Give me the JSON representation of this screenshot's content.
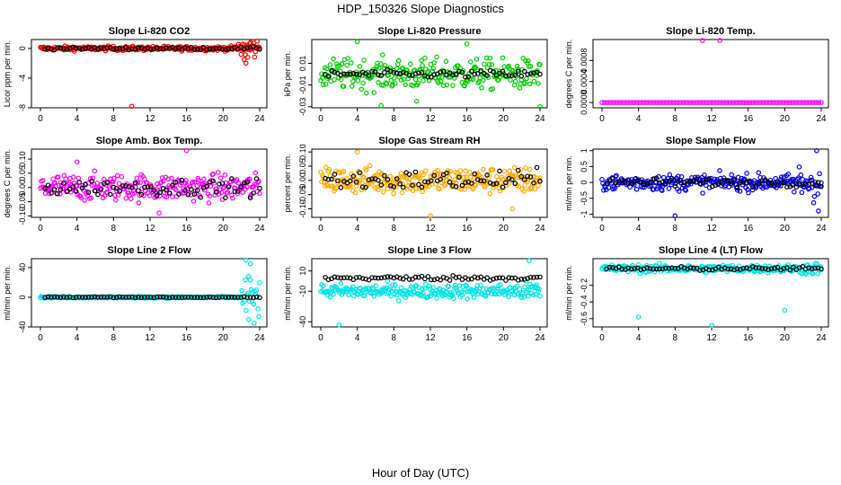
{
  "figure": {
    "title": "HDP_150326  Slope Diagnostics",
    "xlabel": "Hour of Day (UTC)"
  },
  "chart_data": [
    {
      "type": "scatter",
      "title": "Slope Li-820 CO2",
      "ylabel": "Licor ppm per min.",
      "color": "#ff0000",
      "xlim": [
        0,
        24
      ],
      "ylim": [
        -8,
        1.2
      ],
      "xticks": [
        "0",
        "4",
        "8",
        "12",
        "16",
        "20",
        "24"
      ],
      "yticks": [
        -8,
        -4,
        0
      ],
      "ytick_labels": [
        "-8",
        "-4",
        "0"
      ],
      "center": 0,
      "spread": 0.25,
      "black_spread": 0.15,
      "outliers": [
        {
          "x": 10,
          "y": -7.8
        },
        {
          "x": 22.3,
          "y": -1.5
        },
        {
          "x": 22.5,
          "y": -2
        },
        {
          "x": 22.7,
          "y": -1.2
        },
        {
          "x": 23,
          "y": 0.8
        }
      ],
      "end_spread": 1.2,
      "end_start": 21.5
    },
    {
      "type": "scatter",
      "title": "Slope Li-820 Pressure",
      "ylabel": "kPa per min.",
      "color": "#00cc00",
      "xlim": [
        0,
        24
      ],
      "ylim": [
        -0.031,
        0.032
      ],
      "xticks": [
        "0",
        "4",
        "8",
        "12",
        "16",
        "20",
        "24"
      ],
      "yticks": [
        -0.03,
        -0.01,
        0.01
      ],
      "ytick_labels": [
        "-0.03",
        "-0.01",
        "0.01"
      ],
      "center": 0,
      "spread": 0.012,
      "black_spread": 0.003,
      "outliers": [
        {
          "x": 4,
          "y": 0.03
        },
        {
          "x": 6.6,
          "y": -0.029
        },
        {
          "x": 10.5,
          "y": -0.025
        },
        {
          "x": 16,
          "y": 0.028
        },
        {
          "x": 24,
          "y": -0.03
        }
      ],
      "end_spread": 0.012,
      "end_start": 21.5
    },
    {
      "type": "scatter",
      "title": "Slope Li-820 Temp.",
      "ylabel": "degrees C per min.",
      "color": "#ff00ff",
      "xlim": [
        0,
        24
      ],
      "ylim": [
        -0.0001,
        0.0012
      ],
      "xticks": [
        "0",
        "4",
        "8",
        "12",
        "16",
        "20",
        "24"
      ],
      "yticks": [
        0,
        0.0004,
        0.0008
      ],
      "ytick_labels": [
        "0.0000",
        "0.0004",
        "0.0008"
      ],
      "center": 0,
      "spread": 0,
      "black_spread": 0,
      "outliers": [
        {
          "x": 11,
          "y": 0.00118
        },
        {
          "x": 12.9,
          "y": 0.00118
        }
      ],
      "end_spread": 0,
      "end_start": 24
    },
    {
      "type": "scatter",
      "title": "Slope Amb. Box Temp.",
      "ylabel": "degrees C per min.",
      "color": "#ff00ff",
      "xlim": [
        0,
        24
      ],
      "ylim": [
        -0.105,
        0.135
      ],
      "xticks": [
        "0",
        "4",
        "8",
        "12",
        "16",
        "20",
        "24"
      ],
      "yticks": [
        -0.1,
        0,
        0.1
      ],
      "ytick_labels": [
        "-0.10",
        "0.00",
        "0.10"
      ],
      "extra_yticks": [
        -0.05,
        0.05
      ],
      "extra_ytick_labels": [
        "-0.05",
        "0.05"
      ],
      "center": 0,
      "spread": 0.04,
      "black_spread": 0.025,
      "outliers": [
        {
          "x": 13,
          "y": -0.09
        },
        {
          "x": 16,
          "y": 0.13
        },
        {
          "x": 4,
          "y": 0.09
        }
      ],
      "end_spread": 0.04,
      "end_start": 21.5
    },
    {
      "type": "scatter",
      "title": "Slope Gas Stream RH",
      "ylabel": "percent per min.",
      "color": "#ffaa00",
      "xlim": [
        0,
        24
      ],
      "ylim": [
        -0.13,
        0.11
      ],
      "xticks": [
        "0",
        "4",
        "8",
        "12",
        "16",
        "20",
        "24"
      ],
      "yticks": [
        -0.1,
        0,
        0.1
      ],
      "ytick_labels": [
        "-0.10",
        "0.00",
        "0.10"
      ],
      "extra_yticks": [
        -0.05,
        0.05
      ],
      "extra_ytick_labels": [
        "-0.05",
        "0.05"
      ],
      "center": 0,
      "spread": 0.04,
      "black_spread": 0.03,
      "outliers": [
        {
          "x": 4,
          "y": 0.1
        },
        {
          "x": 12,
          "y": -0.125
        },
        {
          "x": 21,
          "y": -0.1
        }
      ],
      "end_spread": 0.04,
      "end_start": 21.5
    },
    {
      "type": "scatter",
      "title": "Slope Sample Flow",
      "ylabel": "ml/min per min.",
      "color": "#0000ee",
      "xlim": [
        0,
        24
      ],
      "ylim": [
        -1.1,
        1.05
      ],
      "xticks": [
        "0",
        "4",
        "8",
        "12",
        "16",
        "20",
        "24"
      ],
      "yticks": [
        -1,
        0,
        1
      ],
      "ytick_labels": [
        "-1",
        "0",
        "1"
      ],
      "extra_yticks": [
        -0.5,
        0.5
      ],
      "extra_ytick_labels": [
        "-0.5",
        "0.5"
      ],
      "center": 0,
      "spread": 0.22,
      "black_spread": 0.12,
      "outliers": [
        {
          "x": 8,
          "y": -1.05
        },
        {
          "x": 23.5,
          "y": 1
        },
        {
          "x": 23.7,
          "y": -0.9
        }
      ],
      "end_spread": 0.5,
      "end_start": 21
    },
    {
      "type": "scatter",
      "title": "Slope Line 2 Flow",
      "ylabel": "ml/min per min.",
      "color": "#00e5e5",
      "xlim": [
        0,
        24
      ],
      "ylim": [
        -40,
        52
      ],
      "xticks": [
        "0",
        "4",
        "8",
        "12",
        "16",
        "20",
        "24"
      ],
      "yticks": [
        -40,
        0,
        40
      ],
      "ytick_labels": [
        "-40",
        "0",
        "40"
      ],
      "center": 0,
      "spread": 1,
      "black_spread": 0.5,
      "outliers": [
        {
          "x": 22.5,
          "y": 50
        },
        {
          "x": 23,
          "y": 45
        },
        {
          "x": 23.4,
          "y": -35
        },
        {
          "x": 22.8,
          "y": -30
        }
      ],
      "end_spread": 25,
      "end_start": 22
    },
    {
      "type": "scatter",
      "title": "Slope Line 3 Flow",
      "ylabel": "ml/min per min.",
      "color": "#00e5e5",
      "xlim": [
        0,
        24
      ],
      "ylim": [
        -45,
        22
      ],
      "xticks": [
        "0",
        "4",
        "8",
        "12",
        "16",
        "20",
        "24"
      ],
      "yticks": [
        -40,
        -10,
        10
      ],
      "ytick_labels": [
        "-40",
        "-10",
        "10"
      ],
      "center": -10,
      "spread": 6,
      "black_spread": 2,
      "black_center": 3,
      "outliers": [
        {
          "x": 2,
          "y": -43
        },
        {
          "x": 22.8,
          "y": 20
        },
        {
          "x": 23.5,
          "y": -5
        }
      ],
      "end_spread": 8,
      "end_start": 21.5
    },
    {
      "type": "scatter",
      "title": "Slope Line 4 (LT) Flow",
      "ylabel": "ml/min per min.",
      "color": "#00e5e5",
      "xlim": [
        0,
        24
      ],
      "ylim": [
        -0.7,
        0.12
      ],
      "xticks": [
        "0",
        "4",
        "8",
        "12",
        "16",
        "20",
        "24"
      ],
      "yticks": [
        -0.6,
        -0.4,
        -0.2
      ],
      "ytick_labels": [
        "-0.6",
        "-0.4",
        "-0.2"
      ],
      "center": 0,
      "spread": 0.04,
      "black_spread": 0.02,
      "outliers": [
        {
          "x": 4,
          "y": -0.58
        },
        {
          "x": 12,
          "y": -0.68
        },
        {
          "x": 20,
          "y": -0.5
        }
      ],
      "end_spread": 0.06,
      "end_start": 21.5
    }
  ]
}
